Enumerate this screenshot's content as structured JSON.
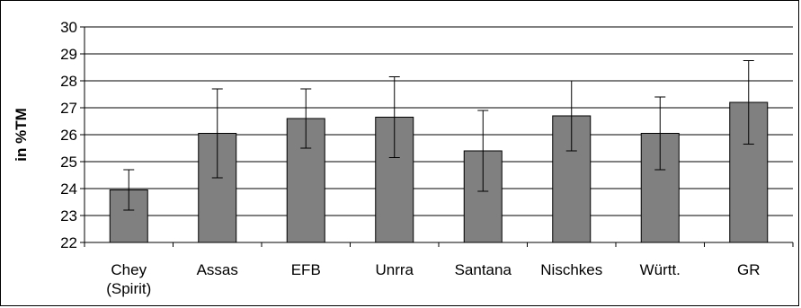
{
  "chart_data": {
    "type": "bar",
    "categories": [
      [
        "Chey",
        "(Spirit)"
      ],
      [
        "Assas"
      ],
      [
        "EFB"
      ],
      [
        "Unrra"
      ],
      [
        "Santana"
      ],
      [
        "Nischkes"
      ],
      [
        "Württ."
      ],
      [
        "GR"
      ]
    ],
    "values": [
      23.95,
      26.05,
      26.6,
      26.65,
      25.4,
      26.7,
      26.05,
      27.2
    ],
    "error": [
      0.75,
      1.65,
      1.1,
      1.5,
      1.5,
      1.3,
      1.35,
      1.55
    ],
    "ylabel": "in %TM",
    "xlabel": "",
    "title": "",
    "ylim": [
      22,
      30
    ],
    "yticks": [
      22,
      23,
      24,
      25,
      26,
      27,
      28,
      29,
      30
    ],
    "grid": true,
    "bar_color": "#808080"
  }
}
